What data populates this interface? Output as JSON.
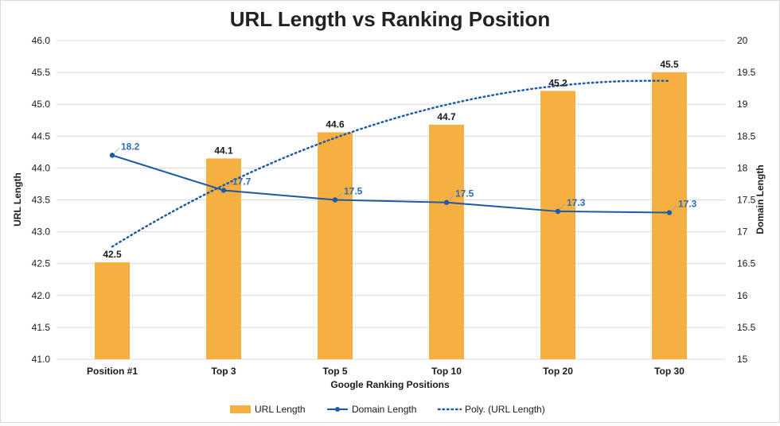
{
  "chart_data": {
    "type": "bar",
    "title": "URL Length vs Ranking Position",
    "xlabel": "Google Ranking Positions",
    "ylabel": "URL Length",
    "y2label": "Domain Length",
    "categories": [
      "Position #1",
      "Top 3",
      "Top 5",
      "Top 10",
      "Top 20",
      "Top 30"
    ],
    "ylim": [
      41.0,
      46.0
    ],
    "y2lim": [
      15,
      20
    ],
    "yticks": [
      "41.0",
      "41.5",
      "42.0",
      "42.5",
      "43.0",
      "43.5",
      "44.0",
      "44.5",
      "45.0",
      "45.5",
      "46.0"
    ],
    "y2ticks": [
      "15",
      "15.5",
      "16",
      "16.5",
      "17",
      "17.5",
      "18",
      "18.5",
      "19",
      "19.5",
      "20"
    ],
    "series": [
      {
        "name": "URL Length",
        "kind": "bar",
        "axis": "left",
        "color": "#f5b041",
        "values": [
          42.52,
          44.15,
          44.56,
          44.68,
          45.21,
          45.5
        ],
        "labels": [
          "42.5",
          "44.1",
          "44.6",
          "44.7",
          "45.2",
          "45.5"
        ]
      },
      {
        "name": "Domain Length",
        "kind": "line",
        "axis": "right",
        "color": "#1f5aa6",
        "values": [
          18.2,
          17.65,
          17.5,
          17.46,
          17.32,
          17.3
        ],
        "labels": [
          "18.2",
          "17.7",
          "17.5",
          "17.5",
          "17.3",
          "17.3"
        ]
      },
      {
        "name": "Poly. (URL Length)",
        "kind": "trendline",
        "axis": "left",
        "color": "#1f5aa6",
        "style": "dotted",
        "degree": 2
      }
    ],
    "grid": true,
    "legend_position": "bottom"
  }
}
